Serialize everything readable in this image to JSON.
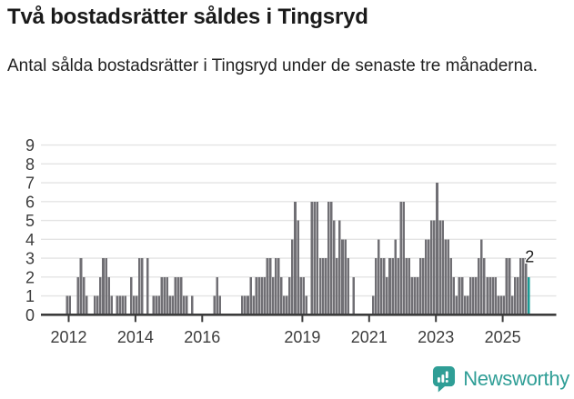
{
  "header": {
    "title": "Två bostadsrätter såldes i Tingsryd",
    "subtitle": "Antal sålda bostadsrätter i Tingsryd under de senaste tre månaderna."
  },
  "chart_data": {
    "type": "bar",
    "title": "Två bostadsrätter såldes i Tingsryd",
    "subtitle": "Antal sålda bostadsrätter i Tingsryd under de senaste tre månaderna.",
    "x_unit": "month",
    "x_start": "2011-12",
    "x_end": "2025-10",
    "ylim": [
      0,
      9
    ],
    "yticks": [
      0,
      1,
      2,
      3,
      4,
      5,
      6,
      7,
      8,
      9
    ],
    "xtick_years": [
      2012,
      2014,
      2016,
      2019,
      2021,
      2023,
      2025
    ],
    "grid": true,
    "legend": "none",
    "values": [
      1,
      1,
      0,
      0,
      2,
      3,
      2,
      1,
      0,
      0,
      1,
      1,
      2,
      3,
      3,
      2,
      1,
      0,
      1,
      1,
      1,
      1,
      0,
      2,
      1,
      1,
      3,
      3,
      0,
      3,
      0,
      1,
      1,
      1,
      2,
      2,
      2,
      1,
      1,
      2,
      2,
      2,
      1,
      1,
      0,
      1,
      0,
      0,
      0,
      0,
      0,
      0,
      0,
      1,
      2,
      1,
      0,
      0,
      0,
      0,
      0,
      0,
      0,
      1,
      1,
      1,
      2,
      1,
      2,
      2,
      2,
      2,
      3,
      3,
      2,
      3,
      3,
      2,
      1,
      1,
      2,
      4,
      6,
      5,
      2,
      2,
      1,
      0,
      6,
      6,
      6,
      3,
      3,
      3,
      6,
      6,
      5,
      3,
      5,
      4,
      4,
      3,
      0,
      2,
      0,
      0,
      0,
      0,
      0,
      0,
      1,
      3,
      4,
      3,
      3,
      2,
      3,
      3,
      4,
      3,
      6,
      6,
      3,
      3,
      2,
      2,
      2,
      3,
      3,
      4,
      4,
      5,
      5,
      7,
      5,
      5,
      4,
      4,
      3,
      2,
      1,
      2,
      2,
      1,
      1,
      2,
      2,
      2,
      3,
      4,
      3,
      2,
      2,
      2,
      2,
      1,
      1,
      1,
      3,
      3,
      1,
      2,
      2,
      3,
      3,
      3,
      2
    ],
    "highlight_last_bar": true,
    "last_value_annotation": "2",
    "colors": {
      "bar": "#706f74",
      "highlight_bar": "#1a9c96",
      "axis": "#3b3b3b",
      "gridline": "#e4e4e4",
      "tick_label": "#3d3d3d",
      "annotation": "#1f1f1f"
    }
  },
  "footer": {
    "brand_name": "Newsworthy",
    "brand_color": "#2f9e96",
    "logo_icon": "bar-chart-speech-bubble"
  }
}
